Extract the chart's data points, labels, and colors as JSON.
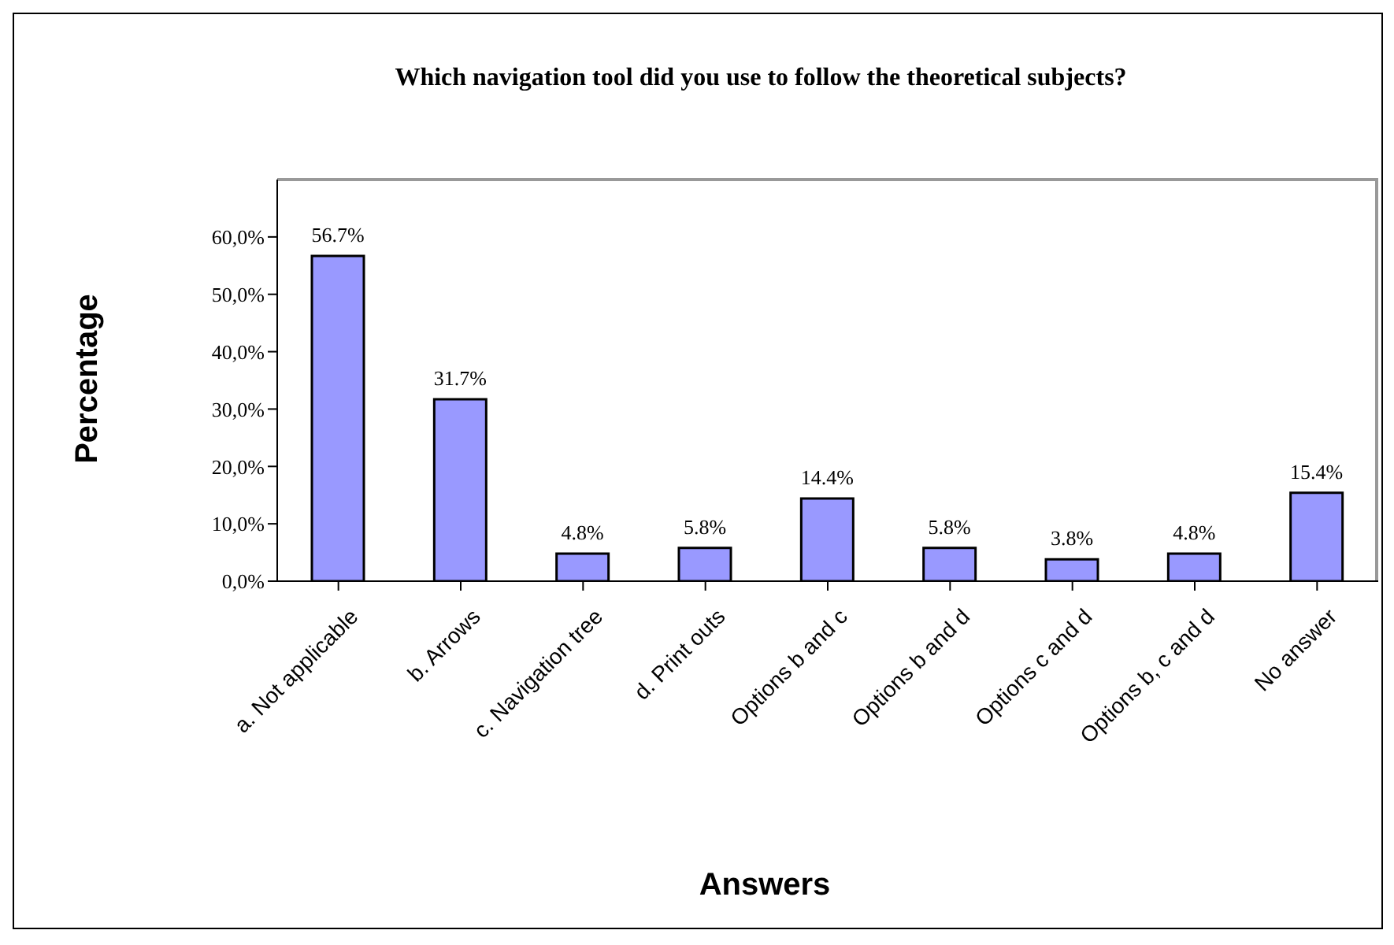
{
  "chart_data": {
    "type": "bar",
    "title": "Which navigation tool did you use to follow the theoretical subjects?",
    "xlabel": "Answers",
    "ylabel": "Percentage",
    "categories": [
      "a.  Not applicable",
      "b.  Arrows",
      "c. Navigation tree",
      "d.  Print outs",
      "Options b and c",
      "Options b and d",
      "Options c and d",
      "Options b, c and d",
      "No answer"
    ],
    "values": [
      56.7,
      31.7,
      4.8,
      5.8,
      14.4,
      5.8,
      3.8,
      4.8,
      15.4
    ],
    "value_labels": [
      "56.7%",
      "31.7%",
      "4.8%",
      "5.8%",
      "14.4%",
      "5.8%",
      "3.8%",
      "4.8%",
      "15.4%"
    ],
    "color": "#9999ff",
    "ylim": [
      0,
      70
    ],
    "yticks": [
      {
        "value": 0,
        "label": "0,0%"
      },
      {
        "value": 10,
        "label": "10,0%"
      },
      {
        "value": 20,
        "label": "20,0%"
      },
      {
        "value": 30,
        "label": "30,0%"
      },
      {
        "value": 40,
        "label": "40,0%"
      },
      {
        "value": 50,
        "label": "50,0%"
      },
      {
        "value": 60,
        "label": "60,0%"
      }
    ],
    "grid": false,
    "legend": false
  }
}
